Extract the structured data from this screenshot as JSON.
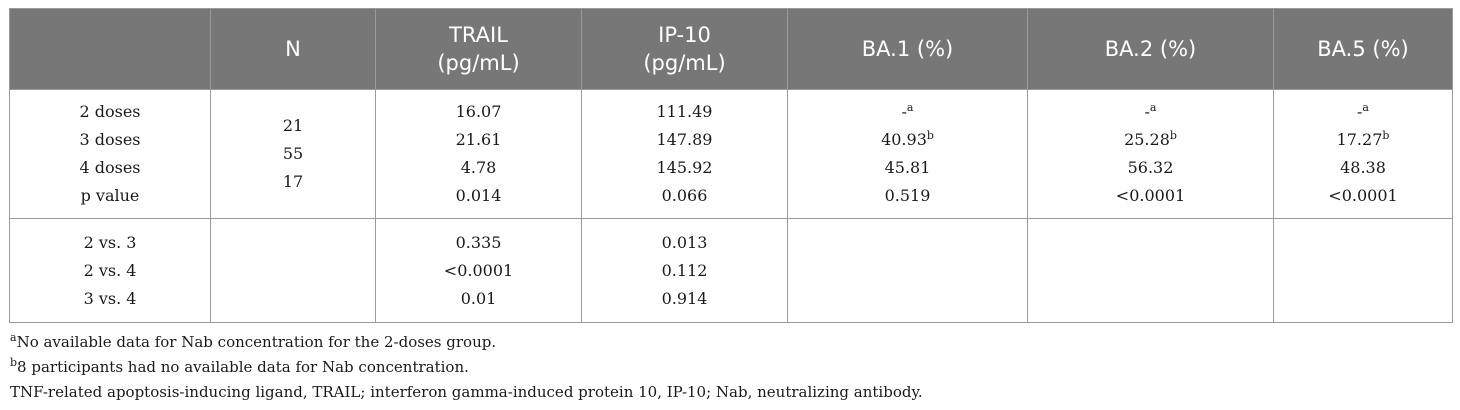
{
  "table": {
    "headers": [
      "",
      "N",
      "TRAIL (pg/mL)",
      "IP-10 (pg/mL)",
      "BA.1 (%)",
      "BA.2 (%)",
      "BA.5 (%)"
    ],
    "header_trail_line1": "TRAIL",
    "header_trail_line2": "(pg/mL)",
    "header_ip10_line1": "IP-10",
    "header_ip10_line2": "(pg/mL)",
    "group_rows": [
      {
        "label": "2 doses",
        "n": "",
        "trail": "16.07",
        "ip10": "111.49",
        "ba1": "-",
        "ba1_sup": "a",
        "ba2": "-",
        "ba2_sup": "a",
        "ba5": "-",
        "ba5_sup": "a"
      },
      {
        "label": "3 doses",
        "n": "21",
        "trail": "21.61",
        "ip10": "147.89",
        "ba1": "40.93",
        "ba1_sup": "b",
        "ba2": "25.28",
        "ba2_sup": "b",
        "ba5": "17.27",
        "ba5_sup": "b"
      },
      {
        "label": "4 doses",
        "n": "55",
        "trail": "4.78",
        "ip10": "145.92",
        "ba1": "45.81",
        "ba1_sup": "",
        "ba2": "56.32",
        "ba2_sup": "",
        "ba5": "48.38",
        "ba5_sup": ""
      },
      {
        "label": "p value",
        "n": "17",
        "trail": "0.014",
        "ip10": "0.066",
        "ba1": "0.519",
        "ba1_sup": "",
        "ba2": "<0.0001",
        "ba2_sup": "",
        "ba5": "<0.0001",
        "ba5_sup": ""
      }
    ],
    "comparison_rows": [
      {
        "label": "2 vs. 3",
        "trail": "0.335",
        "ip10": "0.013"
      },
      {
        "label": "2 vs. 4",
        "trail": "<0.0001",
        "ip10": "0.112"
      },
      {
        "label": "3 vs. 4",
        "trail": "0.01",
        "ip10": "0.914"
      }
    ]
  },
  "footnotes": {
    "a_marker": "a",
    "a_text": "No available data for Nab concentration for the 2-doses group.",
    "b_marker": "b",
    "b_text": "8 participants had no available data for Nab concentration.",
    "abbrev": "TNF-related apoptosis-inducing ligand, TRAIL; interferon gamma-induced protein 10, IP-10; Nab, neutralizing antibody."
  }
}
